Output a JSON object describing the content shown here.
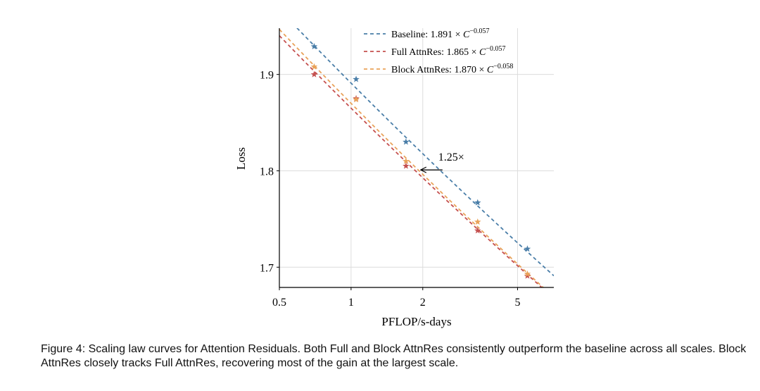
{
  "chart_data": {
    "type": "scatter",
    "xscale": "log",
    "xlabel": "PFLOP/s-days",
    "ylabel": "Loss",
    "xlim": [
      0.5,
      7.1
    ],
    "ylim": [
      1.679,
      1.948
    ],
    "xticks": [
      0.5,
      1,
      2,
      5
    ],
    "xtick_labels": [
      "0.5",
      "1",
      "2",
      "5"
    ],
    "yticks": [
      1.7,
      1.8,
      1.9
    ],
    "ytick_labels": [
      "1.7",
      "1.8",
      "1.9"
    ],
    "grid": true,
    "legend_position": "top-right",
    "series": [
      {
        "name": "Baseline: 1.891 × C^-0.057",
        "legend_prefix": "Baseline: 1.891 × ",
        "legend_base": "C",
        "legend_exp": "−0.057",
        "color": "#4a7ea8",
        "fit": {
          "a": 1.891,
          "b": -0.057
        },
        "x": [
          0.7,
          1.05,
          1.7,
          3.4,
          5.5
        ],
        "y": [
          1.929,
          1.895,
          1.83,
          1.767,
          1.719
        ]
      },
      {
        "name": "Full AttnRes: 1.865 × C^-0.057",
        "legend_prefix": "Full AttnRes: 1.865 × ",
        "legend_base": "C",
        "legend_exp": "−0.057",
        "color": "#c5504f",
        "fit": {
          "a": 1.865,
          "b": -0.057
        },
        "x": [
          0.7,
          1.05,
          1.7,
          3.4,
          5.5
        ],
        "y": [
          1.9,
          1.875,
          1.805,
          1.738,
          1.691
        ]
      },
      {
        "name": "Block AttnRes: 1.870 × C^-0.058",
        "legend_prefix": "Block AttnRes: 1.870 × ",
        "legend_base": "C",
        "legend_exp": "−0.058",
        "color": "#e9a259",
        "fit": {
          "a": 1.87,
          "b": -0.058
        },
        "x": [
          0.7,
          1.05,
          1.7,
          3.4,
          5.5
        ],
        "y": [
          1.908,
          1.874,
          1.81,
          1.747,
          1.693
        ]
      }
    ],
    "annotation": {
      "text": "1.25×",
      "x_from": 2.42,
      "x_to": 1.96,
      "y": 1.801
    }
  },
  "caption": {
    "label": "Figure 4:",
    "text": "Scaling law curves for Attention Residuals. Both Full and Block AttnRes consistently outperform the baseline across all scales. Block AttnRes closely tracks Full AttnRes, recovering most of the gain at the largest scale."
  }
}
